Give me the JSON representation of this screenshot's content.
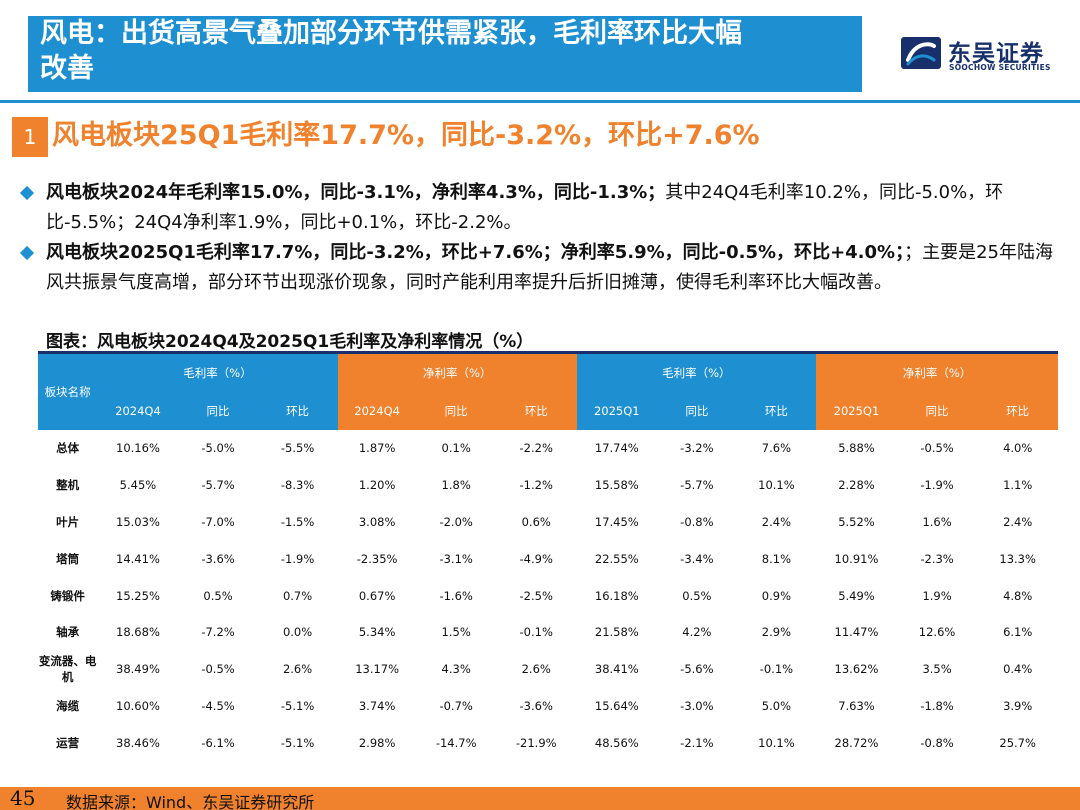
{
  "header": {
    "title_line1": "风电：出货高景气叠加部分环节供需紧张，毛利率环比大幅",
    "title_line2": "改善",
    "logo_cn": "东吴证券",
    "logo_en": "SOOCHOW SECURITIES",
    "colors": {
      "header_blue": "#1e8fd0",
      "logo_navy": "#17306b"
    }
  },
  "section": {
    "number": "1",
    "title": "风电板块25Q1毛利率17.7%，同比-3.2%，环比+7.6%",
    "accent": "#f0822d"
  },
  "bullets": [
    {
      "bold": "风电板块2024年毛利率15.0%，同比-3.1%，净利率4.3%，同比-1.3%；",
      "normal": "其中24Q4毛利率10.2%，同比-5.0%，环比-5.5%；24Q4净利率1.9%，同比+0.1%，环比-2.2%。"
    },
    {
      "bold": "风电板块2025Q1毛利率17.7%，同比-3.2%，环比+7.6%；净利率5.9%，同比-0.5%，环比+4.0%；",
      "normal": "；主要是25年陆海风共振景气度高增，部分环节出现涨价现象，同时产能利用率提升后折旧摊薄，使得毛利率环比大幅改善。"
    }
  ],
  "caption": "图表：风电板块2024Q4及2025Q1毛利率及净利率情况（%）",
  "table": {
    "row_header": "板块名称",
    "groups": [
      "毛利率（%）",
      "净利率（%）",
      "毛利率（%）",
      "净利率（%）"
    ],
    "subheaders": [
      "2024Q4",
      "同比",
      "环比",
      "2024Q4",
      "同比",
      "环比",
      "2025Q1",
      "同比",
      "环比",
      "2025Q1",
      "同比",
      "环比"
    ],
    "rows": [
      {
        "name": "总体",
        "cells": [
          "10.16%",
          "-5.0%",
          "-5.5%",
          "1.87%",
          "0.1%",
          "-2.2%",
          "17.74%",
          "-3.2%",
          "7.6%",
          "5.88%",
          "-0.5%",
          "4.0%"
        ]
      },
      {
        "name": "整机",
        "cells": [
          "5.45%",
          "-5.7%",
          "-8.3%",
          "1.20%",
          "1.8%",
          "-1.2%",
          "15.58%",
          "-5.7%",
          "10.1%",
          "2.28%",
          "-1.9%",
          "1.1%"
        ]
      },
      {
        "name": "叶片",
        "cells": [
          "15.03%",
          "-7.0%",
          "-1.5%",
          "3.08%",
          "-2.0%",
          "0.6%",
          "17.45%",
          "-0.8%",
          "2.4%",
          "5.52%",
          "1.6%",
          "2.4%"
        ]
      },
      {
        "name": "塔筒",
        "cells": [
          "14.41%",
          "-3.6%",
          "-1.9%",
          "-2.35%",
          "-3.1%",
          "-4.9%",
          "22.55%",
          "-3.4%",
          "8.1%",
          "10.91%",
          "-2.3%",
          "13.3%"
        ]
      },
      {
        "name": "铸锻件",
        "cells": [
          "15.25%",
          "0.5%",
          "0.7%",
          "0.67%",
          "-1.6%",
          "-2.5%",
          "16.18%",
          "0.5%",
          "0.9%",
          "5.49%",
          "1.9%",
          "4.8%"
        ]
      },
      {
        "name": "轴承",
        "cells": [
          "18.68%",
          "-7.2%",
          "0.0%",
          "5.34%",
          "1.5%",
          "-0.1%",
          "21.58%",
          "4.2%",
          "2.9%",
          "11.47%",
          "12.6%",
          "6.1%"
        ]
      },
      {
        "name": "变流器、电机",
        "cells": [
          "38.49%",
          "-0.5%",
          "2.6%",
          "13.17%",
          "4.3%",
          "2.6%",
          "38.41%",
          "-5.6%",
          "-0.1%",
          "13.62%",
          "3.5%",
          "0.4%"
        ]
      },
      {
        "name": "海缆",
        "cells": [
          "10.60%",
          "-4.5%",
          "-5.1%",
          "3.74%",
          "-0.7%",
          "-3.6%",
          "15.64%",
          "-3.0%",
          "5.0%",
          "7.63%",
          "-1.8%",
          "3.9%"
        ]
      },
      {
        "name": "运营",
        "cells": [
          "38.46%",
          "-6.1%",
          "-5.1%",
          "2.98%",
          "-14.7%",
          "-21.9%",
          "48.56%",
          "-2.1%",
          "10.1%",
          "28.72%",
          "-0.8%",
          "25.7%"
        ]
      }
    ],
    "colors": {
      "blue": "#1e8fd0",
      "orange": "#f0822d"
    }
  },
  "footer": {
    "page": "45",
    "source": "数据来源：Wind、东吴证券研究所"
  }
}
